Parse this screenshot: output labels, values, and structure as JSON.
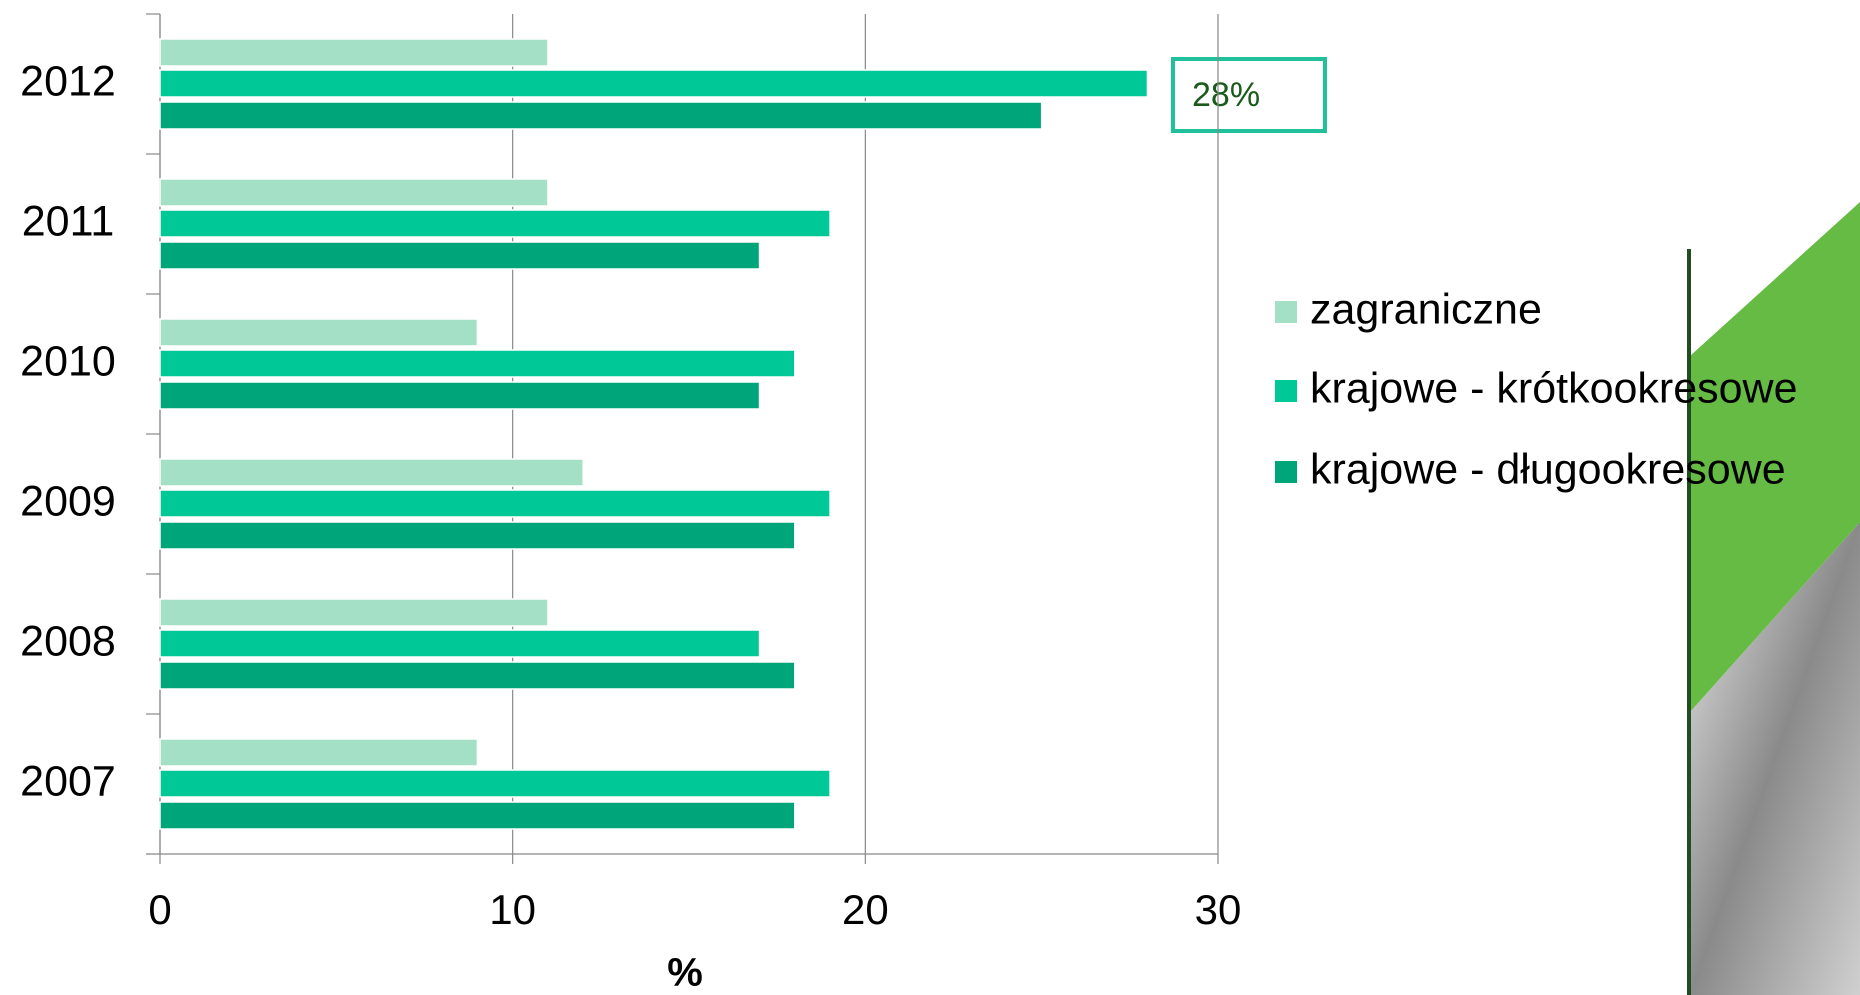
{
  "chart_data": {
    "type": "bar",
    "orientation": "horizontal",
    "categories": [
      "2012",
      "2011",
      "2010",
      "2009",
      "2008",
      "2007"
    ],
    "series": [
      {
        "name": "zagraniczne",
        "color": "#a3e0c6",
        "values": [
          11,
          11,
          9,
          12,
          11,
          9
        ]
      },
      {
        "name": "krajowe - krótkookresowe",
        "color": "#00c896",
        "values": [
          28,
          19,
          18,
          19,
          17,
          19
        ]
      },
      {
        "name": "krajowe - długookresowe",
        "color": "#00a57a",
        "values": [
          25,
          17,
          17,
          18,
          18,
          18
        ]
      }
    ],
    "xlabel": "%",
    "xlim": [
      0,
      30
    ],
    "xticks": [
      0,
      10,
      20,
      30
    ],
    "grid": true,
    "legend": "right",
    "annotation": "28%"
  }
}
